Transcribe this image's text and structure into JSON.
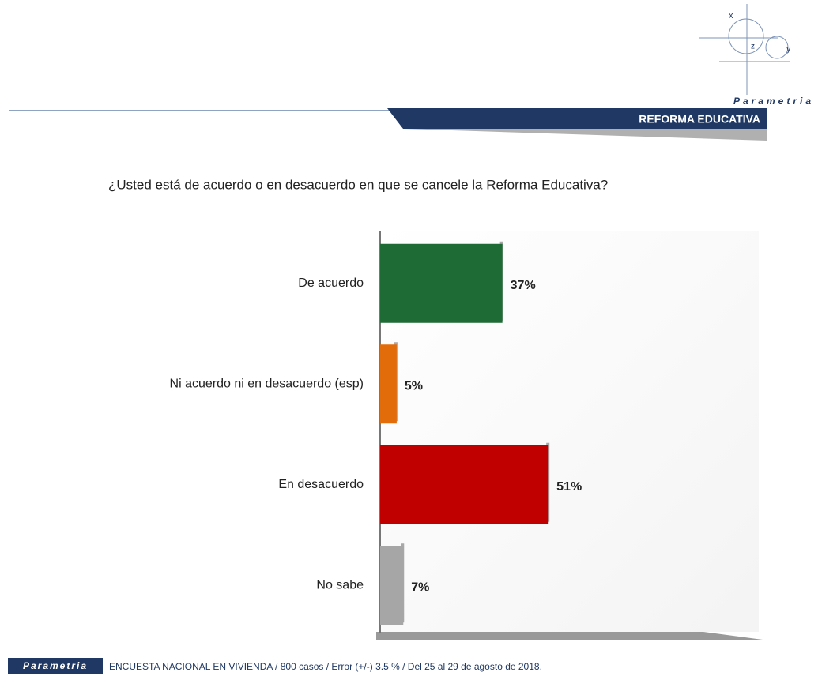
{
  "header": {
    "section": "REFORMA EDUCATIVA"
  },
  "logo": {
    "name": "Parametria",
    "letters": [
      "x",
      "z",
      "y"
    ]
  },
  "footer": {
    "brand": "Parametria",
    "note": "ENCUESTA NACIONAL EN VIVIENDA / 800 casos / Error (+/-) 3.5 % / Del 25 al 29 de agosto de 2018."
  },
  "chart_data": {
    "type": "hbar",
    "title": "¿Usted está de acuerdo o en desacuerdo en que se cancele la Reforma Educativa?",
    "categories": [
      "De acuerdo",
      "Ni acuerdo ni en desacuerdo (esp)",
      "En desacuerdo",
      "No sabe"
    ],
    "values": [
      37,
      5,
      51,
      7
    ],
    "value_labels": [
      "37%",
      "5%",
      "51%",
      "7%"
    ],
    "colors": [
      "#1f6b35",
      "#e36c0a",
      "#c00000",
      "#a6a6a6"
    ],
    "xlim": [
      0,
      100
    ]
  }
}
